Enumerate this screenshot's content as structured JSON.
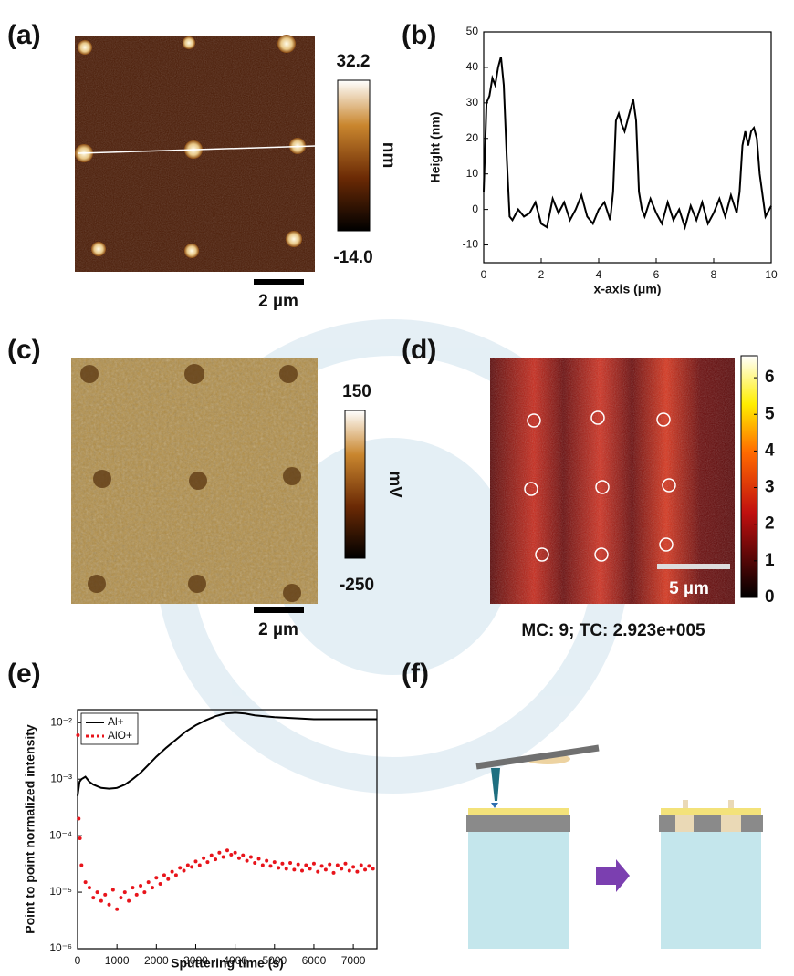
{
  "panels": {
    "labels": [
      "(a)",
      "(b)",
      "(c)",
      "(d)",
      "(e)",
      "(f)"
    ]
  },
  "afm_topography": {
    "colorbar": {
      "ticks": [
        {
          "value": 32.2,
          "label": "32.2"
        },
        {
          "value": -14.0,
          "label": "-14.0"
        }
      ],
      "unit": "nm"
    },
    "scale_bar": "2 µm"
  },
  "kpfm": {
    "colorbar": {
      "ticks": [
        150,
        -250
      ],
      "unit": "mV"
    },
    "scale_bar": "2 µm"
  },
  "tof_sims_map": {
    "colorbar": {
      "ticks": [
        0,
        1,
        2,
        3,
        4,
        5,
        6
      ],
      "lim": [
        0,
        6.6
      ]
    },
    "scale_bar": "5 µm",
    "caption": "MC: 9; TC: 2.923e+005"
  },
  "chart_data": [
    {
      "type": "line",
      "xlabel": "x-axis (μm)",
      "ylabel": "Height (nm)",
      "x": [
        0,
        0.1,
        0.2,
        0.3,
        0.4,
        0.5,
        0.6,
        0.7,
        0.8,
        0.9,
        1.0,
        1.2,
        1.4,
        1.6,
        1.8,
        2.0,
        2.2,
        2.4,
        2.6,
        2.8,
        3.0,
        3.2,
        3.4,
        3.6,
        3.8,
        4.0,
        4.2,
        4.4,
        4.5,
        4.6,
        4.7,
        4.8,
        4.9,
        5.0,
        5.1,
        5.2,
        5.3,
        5.4,
        5.5,
        5.6,
        5.8,
        6.0,
        6.2,
        6.4,
        6.6,
        6.8,
        7.0,
        7.2,
        7.4,
        7.6,
        7.8,
        8.0,
        8.2,
        8.4,
        8.6,
        8.8,
        8.9,
        9.0,
        9.1,
        9.2,
        9.3,
        9.4,
        9.5,
        9.6,
        9.8,
        10
      ],
      "series": [
        {
          "color": "#000000",
          "mode": "line",
          "values": [
            5,
            30,
            32,
            37,
            35,
            40,
            43,
            35,
            15,
            -2,
            -3,
            0,
            -2,
            -1,
            2,
            -4,
            -5,
            3,
            -1,
            2,
            -3,
            0,
            4,
            -2,
            -4,
            0,
            2,
            -3,
            5,
            25,
            27,
            24,
            22,
            25,
            28,
            31,
            25,
            5,
            0,
            -2,
            3,
            -1,
            -4,
            2,
            -3,
            0,
            -5,
            1,
            -3,
            2,
            -4,
            -1,
            3,
            -2,
            4,
            -1,
            5,
            18,
            22,
            18,
            22,
            23,
            20,
            10,
            -2,
            1
          ]
        }
      ],
      "xlim": [
        0,
        10
      ],
      "xticks": [
        0,
        2,
        4,
        6,
        8,
        10
      ],
      "ylim": [
        -15,
        50
      ],
      "yticks": [
        -10,
        0,
        10,
        20,
        30,
        40,
        50
      ]
    },
    {
      "type": "line",
      "xlabel": "Sputtering time (s)",
      "ylabel": "Point to point normalized intensity",
      "y_scale": "log",
      "legend": "top-left",
      "series": [
        {
          "name": "Al+",
          "color": "#000000",
          "mode": "line",
          "x": [
            0,
            50,
            100,
            200,
            300,
            400,
            600,
            800,
            1000,
            1200,
            1400,
            1600,
            1800,
            2000,
            2250,
            2500,
            2750,
            3000,
            3250,
            3500,
            3750,
            4000,
            4250,
            4500,
            4750,
            5000,
            5500,
            6000,
            6500,
            7000,
            7600
          ],
          "values": [
            0.0005,
            0.0009,
            0.001,
            0.0011,
            0.0009,
            0.0008,
            0.0007,
            0.00068,
            0.0007,
            0.0008,
            0.001,
            0.0013,
            0.0018,
            0.0025,
            0.0036,
            0.005,
            0.007,
            0.009,
            0.011,
            0.013,
            0.0145,
            0.015,
            0.0145,
            0.0135,
            0.013,
            0.0125,
            0.012,
            0.0115,
            0.0115,
            0.0115,
            0.0115
          ]
        },
        {
          "name": "AlO+",
          "color": "#e8141b",
          "mode": "markers",
          "x": [
            10,
            30,
            60,
            100,
            200,
            300,
            400,
            500,
            600,
            700,
            800,
            900,
            1000,
            1100,
            1200,
            1300,
            1400,
            1500,
            1600,
            1700,
            1800,
            1900,
            2000,
            2100,
            2200,
            2300,
            2400,
            2500,
            2600,
            2700,
            2800,
            2900,
            3000,
            3100,
            3200,
            3300,
            3400,
            3500,
            3600,
            3700,
            3800,
            3900,
            4000,
            4100,
            4200,
            4300,
            4400,
            4500,
            4600,
            4700,
            4800,
            4900,
            5000,
            5100,
            5200,
            5300,
            5400,
            5500,
            5600,
            5700,
            5800,
            5900,
            6000,
            6100,
            6200,
            6300,
            6400,
            6500,
            6600,
            6700,
            6800,
            6900,
            7000,
            7100,
            7200,
            7300,
            7400,
            7500
          ],
          "values": [
            0.006,
            0.0002,
            9e-05,
            3e-05,
            1.5e-05,
            1.2e-05,
            8e-06,
            1e-05,
            7e-06,
            9e-06,
            6e-06,
            1.1e-05,
            5e-06,
            8e-06,
            1e-05,
            7e-06,
            1.2e-05,
            9e-06,
            1.3e-05,
            1e-05,
            1.5e-05,
            1.2e-05,
            1.8e-05,
            1.4e-05,
            2e-05,
            1.7e-05,
            2.3e-05,
            2e-05,
            2.7e-05,
            2.4e-05,
            3e-05,
            2.8e-05,
            3.5e-05,
            3e-05,
            4e-05,
            3.4e-05,
            4.5e-05,
            3.8e-05,
            5e-05,
            4.2e-05,
            5.5e-05,
            4.6e-05,
            5e-05,
            4e-05,
            4.5e-05,
            3.6e-05,
            4.2e-05,
            3.3e-05,
            3.9e-05,
            3e-05,
            3.6e-05,
            2.9e-05,
            3.4e-05,
            2.7e-05,
            3.2e-05,
            2.6e-05,
            3.3e-05,
            2.5e-05,
            3.1e-05,
            2.4e-05,
            3e-05,
            2.6e-05,
            3.2e-05,
            2.3e-05,
            2.9e-05,
            2.5e-05,
            3.1e-05,
            2.2e-05,
            3e-05,
            2.6e-05,
            3.2e-05,
            2.4e-05,
            2.8e-05,
            2.3e-05,
            3e-05,
            2.5e-05,
            2.9e-05,
            2.6e-05
          ]
        }
      ],
      "xlim": [
        0,
        7600
      ],
      "xticks": [
        0,
        1000,
        2000,
        3000,
        4000,
        5000,
        6000,
        7000
      ],
      "ylim": [
        1e-06,
        0.017
      ],
      "yticks": [
        {
          "value": 1e-06,
          "label": "10⁻⁶"
        },
        {
          "value": 1e-05,
          "label": "10⁻⁵"
        },
        {
          "value": 0.0001,
          "label": "10⁻⁴"
        },
        {
          "value": 0.001,
          "label": "10⁻³"
        },
        {
          "value": 0.01,
          "label": "10⁻²"
        }
      ]
    }
  ]
}
